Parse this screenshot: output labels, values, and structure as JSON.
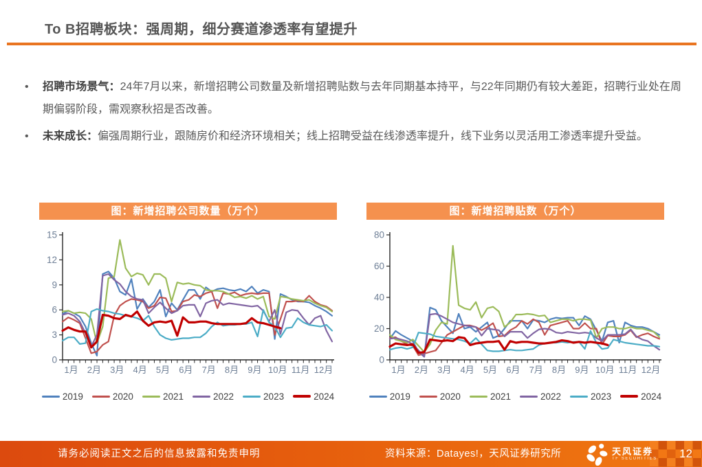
{
  "page": {
    "title": "To B招聘板块：强周期，细分赛道渗透率有望提升",
    "page_number": "12"
  },
  "bullets": [
    {
      "lead": "招聘市场景气：",
      "text": "24年7月以来，新增招聘公司数量及新增招聘贴数与去年同期基本持平，与22年同期仍有较大差距，招聘行业处在周期偏弱阶段，需观察秋招是否改善。"
    },
    {
      "lead": "未来成长：",
      "text": "偏强周期行业，跟随房价和经济环境相关；线上招聘受益在线渗透率提升，线下业务以灵活用工渗透率提升受益。"
    }
  ],
  "footer": {
    "disclaimer": "请务必阅读正文之后的信息披露和免责申明",
    "source": "资料来源：Datayes!，天风证券研究所",
    "brand": "天风证券",
    "brand_en": "TF SECURITIES"
  },
  "colors": {
    "accent_orange": "#E97420",
    "chart_header_bg": "#F5914E",
    "footer_gradient_left": "#DC4A0E",
    "footer_gradient_right": "#F07912",
    "axis_label": "#6E7F96",
    "axis_line": "#262626",
    "body_text": "#595959"
  },
  "chart_data": [
    {
      "type": "line",
      "title": "图：新增招聘公司数量（万个）",
      "x_tick_labels": [
        "1月",
        "2月",
        "3月",
        "4月",
        "5月",
        "6月",
        "7月",
        "8月",
        "9月",
        "10月",
        "11月",
        "12月"
      ],
      "points_per_month": 4,
      "ylim": [
        0,
        15
      ],
      "yticks": [
        0,
        3,
        6,
        9,
        12,
        15
      ],
      "grid": false,
      "legend_position": "bottom",
      "series": [
        {
          "name": "2019",
          "color": "#4F81BD",
          "thick": false,
          "values": [
            5.5,
            5.9,
            5.6,
            5.2,
            4.0,
            2.0,
            0.5,
            10.3,
            10.6,
            9.8,
            8.2,
            7.8,
            9.7,
            6.1,
            7.3,
            6.3,
            7.0,
            8.4,
            5.2,
            6.8,
            6.0,
            7.2,
            8.4,
            8.4,
            7.3,
            8.7,
            8.2,
            8.5,
            8.6,
            8.4,
            8.3,
            8.5,
            8.2,
            8.8,
            8.0,
            8.4,
            8.2,
            2.5,
            7.9,
            7.6,
            7.2,
            7.0,
            7.0,
            6.9,
            6.5,
            6.2,
            5.8,
            5.3
          ]
        },
        {
          "name": "2020",
          "color": "#C0504D",
          "thick": false,
          "values": [
            4.6,
            5.1,
            4.8,
            4.4,
            2.6,
            0.8,
            1.0,
            1.8,
            2.2,
            5.3,
            6.5,
            7.0,
            7.3,
            7.2,
            7.0,
            6.2,
            6.5,
            7.5,
            7.4,
            5.8,
            5.9,
            7.0,
            7.2,
            7.8,
            7.6,
            8.0,
            8.2,
            6.2,
            8.0,
            7.9,
            8.1,
            7.7,
            7.9,
            8.0,
            7.9,
            8.0,
            8.0,
            3.0,
            4.9,
            7.0,
            7.0,
            7.1,
            7.0,
            7.7,
            7.0,
            6.6,
            6.4,
            5.9
          ]
        },
        {
          "name": "2021",
          "color": "#9BBB59",
          "thick": false,
          "values": [
            5.8,
            5.9,
            5.6,
            5.7,
            5.6,
            4.9,
            2.0,
            4.0,
            9.8,
            10.0,
            14.4,
            11.0,
            10.0,
            10.4,
            10.2,
            9.0,
            10.3,
            10.3,
            9.8,
            7.0,
            9.3,
            9.1,
            9.2,
            9.0,
            8.9,
            8.4,
            8.3,
            8.3,
            8.2,
            7.9,
            7.5,
            7.6,
            7.4,
            7.7,
            7.3,
            7.6,
            5.2,
            4.9,
            7.6,
            7.5,
            7.3,
            7.2,
            7.1,
            7.2,
            6.8,
            6.5,
            6.3,
            5.8
          ]
        },
        {
          "name": "2022",
          "color": "#8064A2",
          "thick": false,
          "values": [
            5.4,
            5.6,
            5.3,
            4.6,
            3.2,
            1.6,
            3.0,
            10.1,
            10.3,
            9.6,
            9.1,
            8.2,
            7.6,
            7.3,
            7.2,
            5.6,
            6.3,
            6.9,
            6.2,
            5.6,
            5.9,
            6.5,
            6.6,
            6.6,
            5.2,
            6.8,
            7.1,
            7.2,
            6.6,
            6.8,
            6.7,
            6.6,
            6.5,
            6.4,
            6.5,
            5.9,
            4.6,
            6.0,
            3.1,
            5.7,
            6.0,
            5.9,
            5.0,
            4.2,
            5.0,
            5.3,
            3.5,
            2.2
          ]
        },
        {
          "name": "2023",
          "color": "#4BACC6",
          "thick": false,
          "values": [
            2.3,
            2.7,
            2.7,
            1.9,
            2.0,
            5.8,
            6.1,
            5.9,
            5.8,
            5.6,
            5.5,
            5.3,
            5.2,
            5.0,
            4.7,
            5.3,
            4.0,
            3.0,
            2.6,
            2.4,
            2.5,
            2.6,
            2.6,
            2.7,
            2.7,
            3.2,
            4.0,
            4.5,
            4.1,
            4.2,
            4.2,
            4.3,
            4.3,
            4.5,
            2.8,
            6.0,
            4.5,
            4.0,
            2.7,
            3.8,
            3.9,
            5.0,
            4.5,
            4.2,
            4.1,
            4.0,
            4.2,
            3.5
          ]
        },
        {
          "name": "2024",
          "color": "#C00000",
          "thick": true,
          "values": [
            3.5,
            3.9,
            3.6,
            3.4,
            3.4,
            1.5,
            2.2,
            5.4,
            5.3,
            5.0,
            4.9,
            5.4,
            5.2,
            5.8,
            4.7,
            4.1,
            4.5,
            4.6,
            4.5,
            4.7,
            2.9,
            5.1,
            4.5,
            4.5,
            4.6,
            4.6,
            4.4,
            4.3,
            4.3,
            4.3,
            4.3,
            4.3,
            4.4,
            5.0,
            4.5,
            4.4,
            4.2,
            4.0,
            3.8
          ]
        }
      ]
    },
    {
      "type": "line",
      "title": "图：新增招聘贴数（万个）",
      "x_tick_labels": [
        "1月",
        "2月",
        "3月",
        "4月",
        "5月",
        "6月",
        "7月",
        "8月",
        "9月",
        "10月",
        "11月",
        "12月"
      ],
      "points_per_month": 4,
      "ylim": [
        0,
        80
      ],
      "yticks": [
        0,
        20,
        40,
        60,
        80
      ],
      "grid": false,
      "legend_position": "bottom",
      "series": [
        {
          "name": "2019",
          "color": "#4F81BD",
          "thick": false,
          "values": [
            13.5,
            18.5,
            16,
            14,
            12,
            5,
            2,
            33.5,
            32,
            25,
            21,
            17,
            29.5,
            20,
            21,
            18,
            21,
            24,
            14,
            15.5,
            20,
            25,
            25,
            25,
            20,
            25.5,
            25,
            24,
            26,
            27,
            26.5,
            27,
            27,
            22,
            28,
            26,
            19,
            12,
            24,
            25,
            11,
            24,
            22,
            21,
            21,
            20,
            18,
            16
          ]
        },
        {
          "name": "2020",
          "color": "#C0504D",
          "thick": false,
          "values": [
            14,
            14.5,
            12,
            10,
            9,
            3,
            4,
            5,
            6,
            11,
            16,
            18,
            20,
            22,
            22,
            21,
            19,
            21,
            23.5,
            15,
            15.5,
            19,
            21,
            25,
            23,
            26,
            24,
            16,
            22,
            23,
            24,
            25,
            20,
            20,
            23.5,
            20,
            20,
            10,
            15.5,
            15,
            15,
            16,
            19,
            14.5,
            16,
            17,
            15,
            13.5
          ]
        },
        {
          "name": "2021",
          "color": "#9BBB59",
          "thick": false,
          "values": [
            16,
            13,
            12,
            11,
            13,
            9,
            5,
            10,
            19,
            24,
            23,
            73,
            35,
            33,
            32,
            37,
            27,
            33,
            34,
            31,
            21,
            24,
            29,
            29,
            29.5,
            29,
            28,
            28.5,
            24,
            25,
            26,
            26,
            25,
            26,
            26,
            25.5,
            14,
            20,
            21,
            21,
            20,
            20,
            21,
            20,
            20,
            19,
            18,
            14.5
          ]
        },
        {
          "name": "2022",
          "color": "#8064A2",
          "thick": false,
          "values": [
            13.5,
            14,
            13,
            12,
            10,
            6,
            2,
            29,
            29.5,
            28,
            26,
            24,
            23,
            22,
            21.5,
            21,
            15.5,
            20,
            19.5,
            19,
            15,
            18,
            18,
            18,
            14,
            17,
            19.5,
            20,
            19.5,
            17.5,
            17,
            18,
            17.5,
            17,
            17.5,
            17,
            14,
            12,
            16,
            16,
            16,
            16.5,
            19.5,
            15,
            13,
            12,
            9,
            6.5
          ]
        },
        {
          "name": "2023",
          "color": "#4BACC6",
          "thick": false,
          "values": [
            6.5,
            7.5,
            8,
            7,
            8,
            17.5,
            17,
            16.5,
            15,
            14.5,
            14,
            13.5,
            13,
            12,
            10.5,
            14,
            10,
            6,
            5.5,
            5.5,
            6,
            6.5,
            6,
            6,
            6.5,
            7,
            9.5,
            10.5,
            11,
            11,
            11.5,
            11,
            11.5,
            11.5,
            7,
            18.5,
            11,
            7,
            7.5,
            13,
            12,
            11,
            10.5,
            10,
            9.5,
            9,
            9,
            8.5
          ]
        },
        {
          "name": "2024",
          "color": "#C00000",
          "thick": true,
          "values": [
            8.5,
            10.5,
            10,
            9.5,
            10,
            4.5,
            5,
            13,
            12.5,
            12,
            12.5,
            12,
            14.5,
            14,
            9.5,
            10.5,
            11,
            11.5,
            11.5,
            12,
            6.5,
            12,
            11,
            11.5,
            11.5,
            11,
            10.5,
            10.5,
            11,
            11.5,
            12.5,
            12,
            11,
            11.5,
            11,
            11.5,
            11,
            10.5,
            9.5
          ]
        }
      ]
    }
  ]
}
